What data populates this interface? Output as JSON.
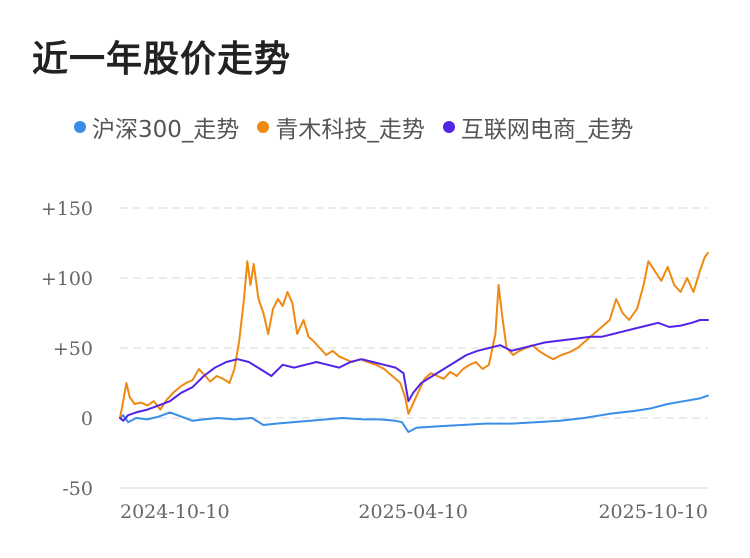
{
  "title": "近一年股价走势",
  "colors": {
    "hs300": "#3a8ee6",
    "qingmu": "#ee8a12",
    "hulian": "#5324e6",
    "grid": "#e6e6e6"
  },
  "chart_data": {
    "type": "line",
    "yticks": [
      150,
      100,
      50,
      0,
      -50
    ],
    "ytick_labels": [
      "+150",
      "+100",
      "+50",
      "0",
      "-50"
    ],
    "ylim": [
      -50,
      150
    ],
    "xticks": [
      "2024-10-10",
      "2025-04-10",
      "2025-10-10"
    ],
    "xlim": [
      "2024-10-10",
      "2025-10-10"
    ],
    "series": [
      {
        "name": "沪深300_走势",
        "color": "#3a8ee6",
        "points": [
          [
            "2024-10-10",
            0
          ],
          [
            "2024-10-12",
            2
          ],
          [
            "2024-10-15",
            -3
          ],
          [
            "2024-10-20",
            0
          ],
          [
            "2024-10-27",
            -1
          ],
          [
            "2024-11-03",
            1
          ],
          [
            "2024-11-10",
            4
          ],
          [
            "2024-11-17",
            1
          ],
          [
            "2024-11-24",
            -2
          ],
          [
            "2024-12-01",
            -1
          ],
          [
            "2024-12-10",
            0
          ],
          [
            "2024-12-20",
            -1
          ],
          [
            "2024-12-31",
            0
          ],
          [
            "2025-01-07",
            -5
          ],
          [
            "2025-01-15",
            -4
          ],
          [
            "2025-01-25",
            -3
          ],
          [
            "2025-02-05",
            -2
          ],
          [
            "2025-02-15",
            -1
          ],
          [
            "2025-02-25",
            0
          ],
          [
            "2025-03-10",
            -1
          ],
          [
            "2025-03-20",
            -1
          ],
          [
            "2025-03-30",
            -2
          ],
          [
            "2025-04-03",
            -3
          ],
          [
            "2025-04-07",
            -10
          ],
          [
            "2025-04-12",
            -7
          ],
          [
            "2025-04-25",
            -6
          ],
          [
            "2025-05-10",
            -5
          ],
          [
            "2025-05-25",
            -4
          ],
          [
            "2025-06-10",
            -4
          ],
          [
            "2025-06-25",
            -3
          ],
          [
            "2025-07-10",
            -2
          ],
          [
            "2025-07-25",
            0
          ],
          [
            "2025-08-10",
            3
          ],
          [
            "2025-08-25",
            5
          ],
          [
            "2025-09-05",
            7
          ],
          [
            "2025-09-15",
            10
          ],
          [
            "2025-09-25",
            12
          ],
          [
            "2025-10-05",
            14
          ],
          [
            "2025-10-10",
            16
          ]
        ]
      },
      {
        "name": "青木科技_走势",
        "color": "#ee8a12",
        "points": [
          [
            "2024-10-10",
            0
          ],
          [
            "2024-10-12",
            12
          ],
          [
            "2024-10-14",
            25
          ],
          [
            "2024-10-16",
            15
          ],
          [
            "2024-10-19",
            10
          ],
          [
            "2024-10-23",
            11
          ],
          [
            "2024-10-27",
            9
          ],
          [
            "2024-10-31",
            12
          ],
          [
            "2024-11-04",
            6
          ],
          [
            "2024-11-08",
            13
          ],
          [
            "2024-11-12",
            18
          ],
          [
            "2024-11-16",
            22
          ],
          [
            "2024-11-20",
            25
          ],
          [
            "2024-11-24",
            27
          ],
          [
            "2024-11-28",
            35
          ],
          [
            "2024-12-02",
            30
          ],
          [
            "2024-12-05",
            26
          ],
          [
            "2024-12-09",
            30
          ],
          [
            "2024-12-13",
            28
          ],
          [
            "2024-12-17",
            25
          ],
          [
            "2024-12-20",
            35
          ],
          [
            "2024-12-23",
            55
          ],
          [
            "2024-12-26",
            85
          ],
          [
            "2024-12-28",
            112
          ],
          [
            "2024-12-30",
            95
          ],
          [
            "2025-01-01",
            110
          ],
          [
            "2025-01-04",
            85
          ],
          [
            "2025-01-07",
            75
          ],
          [
            "2025-01-10",
            60
          ],
          [
            "2025-01-13",
            78
          ],
          [
            "2025-01-16",
            85
          ],
          [
            "2025-01-19",
            80
          ],
          [
            "2025-01-22",
            90
          ],
          [
            "2025-01-25",
            82
          ],
          [
            "2025-01-28",
            60
          ],
          [
            "2025-02-01",
            70
          ],
          [
            "2025-02-04",
            58
          ],
          [
            "2025-02-07",
            55
          ],
          [
            "2025-02-11",
            50
          ],
          [
            "2025-02-15",
            45
          ],
          [
            "2025-02-19",
            48
          ],
          [
            "2025-02-23",
            44
          ],
          [
            "2025-02-27",
            42
          ],
          [
            "2025-03-03",
            40
          ],
          [
            "2025-03-08",
            42
          ],
          [
            "2025-03-13",
            40
          ],
          [
            "2025-03-18",
            38
          ],
          [
            "2025-03-23",
            35
          ],
          [
            "2025-03-28",
            30
          ],
          [
            "2025-04-02",
            25
          ],
          [
            "2025-04-05",
            15
          ],
          [
            "2025-04-07",
            3
          ],
          [
            "2025-04-09",
            8
          ],
          [
            "2025-04-13",
            18
          ],
          [
            "2025-04-17",
            28
          ],
          [
            "2025-04-21",
            32
          ],
          [
            "2025-04-25",
            30
          ],
          [
            "2025-04-29",
            28
          ],
          [
            "2025-05-03",
            33
          ],
          [
            "2025-05-07",
            30
          ],
          [
            "2025-05-11",
            35
          ],
          [
            "2025-05-15",
            38
          ],
          [
            "2025-05-19",
            40
          ],
          [
            "2025-05-23",
            35
          ],
          [
            "2025-05-27",
            38
          ],
          [
            "2025-05-31",
            60
          ],
          [
            "2025-06-02",
            95
          ],
          [
            "2025-06-04",
            75
          ],
          [
            "2025-06-07",
            50
          ],
          [
            "2025-06-11",
            45
          ],
          [
            "2025-06-15",
            48
          ],
          [
            "2025-06-19",
            50
          ],
          [
            "2025-06-23",
            52
          ],
          [
            "2025-06-27",
            48
          ],
          [
            "2025-07-01",
            45
          ],
          [
            "2025-07-06",
            42
          ],
          [
            "2025-07-11",
            45
          ],
          [
            "2025-07-16",
            47
          ],
          [
            "2025-07-21",
            50
          ],
          [
            "2025-07-26",
            55
          ],
          [
            "2025-07-31",
            60
          ],
          [
            "2025-08-05",
            65
          ],
          [
            "2025-08-10",
            70
          ],
          [
            "2025-08-14",
            85
          ],
          [
            "2025-08-18",
            75
          ],
          [
            "2025-08-22",
            70
          ],
          [
            "2025-08-27",
            78
          ],
          [
            "2025-08-31",
            95
          ],
          [
            "2025-09-03",
            112
          ],
          [
            "2025-09-07",
            105
          ],
          [
            "2025-09-11",
            98
          ],
          [
            "2025-09-15",
            108
          ],
          [
            "2025-09-19",
            95
          ],
          [
            "2025-09-23",
            90
          ],
          [
            "2025-09-27",
            100
          ],
          [
            "2025-10-01",
            90
          ],
          [
            "2025-10-05",
            105
          ],
          [
            "2025-10-08",
            115
          ],
          [
            "2025-10-10",
            118
          ]
        ]
      },
      {
        "name": "互联网电商_走势",
        "color": "#5324e6",
        "points": [
          [
            "2024-10-10",
            0
          ],
          [
            "2024-10-12",
            -2
          ],
          [
            "2024-10-15",
            2
          ],
          [
            "2024-10-20",
            4
          ],
          [
            "2024-10-27",
            6
          ],
          [
            "2024-11-03",
            9
          ],
          [
            "2024-11-10",
            12
          ],
          [
            "2024-11-17",
            18
          ],
          [
            "2024-11-24",
            22
          ],
          [
            "2024-12-01",
            30
          ],
          [
            "2024-12-08",
            36
          ],
          [
            "2024-12-15",
            40
          ],
          [
            "2024-12-22",
            42
          ],
          [
            "2024-12-29",
            40
          ],
          [
            "2025-01-05",
            35
          ],
          [
            "2025-01-12",
            30
          ],
          [
            "2025-01-19",
            38
          ],
          [
            "2025-01-26",
            36
          ],
          [
            "2025-02-02",
            38
          ],
          [
            "2025-02-09",
            40
          ],
          [
            "2025-02-16",
            38
          ],
          [
            "2025-02-23",
            36
          ],
          [
            "2025-03-02",
            40
          ],
          [
            "2025-03-09",
            42
          ],
          [
            "2025-03-16",
            40
          ],
          [
            "2025-03-23",
            38
          ],
          [
            "2025-03-30",
            36
          ],
          [
            "2025-04-04",
            32
          ],
          [
            "2025-04-07",
            12
          ],
          [
            "2025-04-10",
            18
          ],
          [
            "2025-04-15",
            25
          ],
          [
            "2025-04-22",
            30
          ],
          [
            "2025-04-29",
            35
          ],
          [
            "2025-05-06",
            40
          ],
          [
            "2025-05-13",
            45
          ],
          [
            "2025-05-20",
            48
          ],
          [
            "2025-05-27",
            50
          ],
          [
            "2025-06-03",
            52
          ],
          [
            "2025-06-10",
            48
          ],
          [
            "2025-06-17",
            50
          ],
          [
            "2025-06-24",
            52
          ],
          [
            "2025-07-01",
            54
          ],
          [
            "2025-07-08",
            55
          ],
          [
            "2025-07-15",
            56
          ],
          [
            "2025-07-22",
            57
          ],
          [
            "2025-07-29",
            58
          ],
          [
            "2025-08-05",
            58
          ],
          [
            "2025-08-12",
            60
          ],
          [
            "2025-08-19",
            62
          ],
          [
            "2025-08-26",
            64
          ],
          [
            "2025-09-02",
            66
          ],
          [
            "2025-09-09",
            68
          ],
          [
            "2025-09-16",
            65
          ],
          [
            "2025-09-23",
            66
          ],
          [
            "2025-09-30",
            68
          ],
          [
            "2025-10-05",
            70
          ],
          [
            "2025-10-10",
            70
          ]
        ]
      }
    ]
  }
}
